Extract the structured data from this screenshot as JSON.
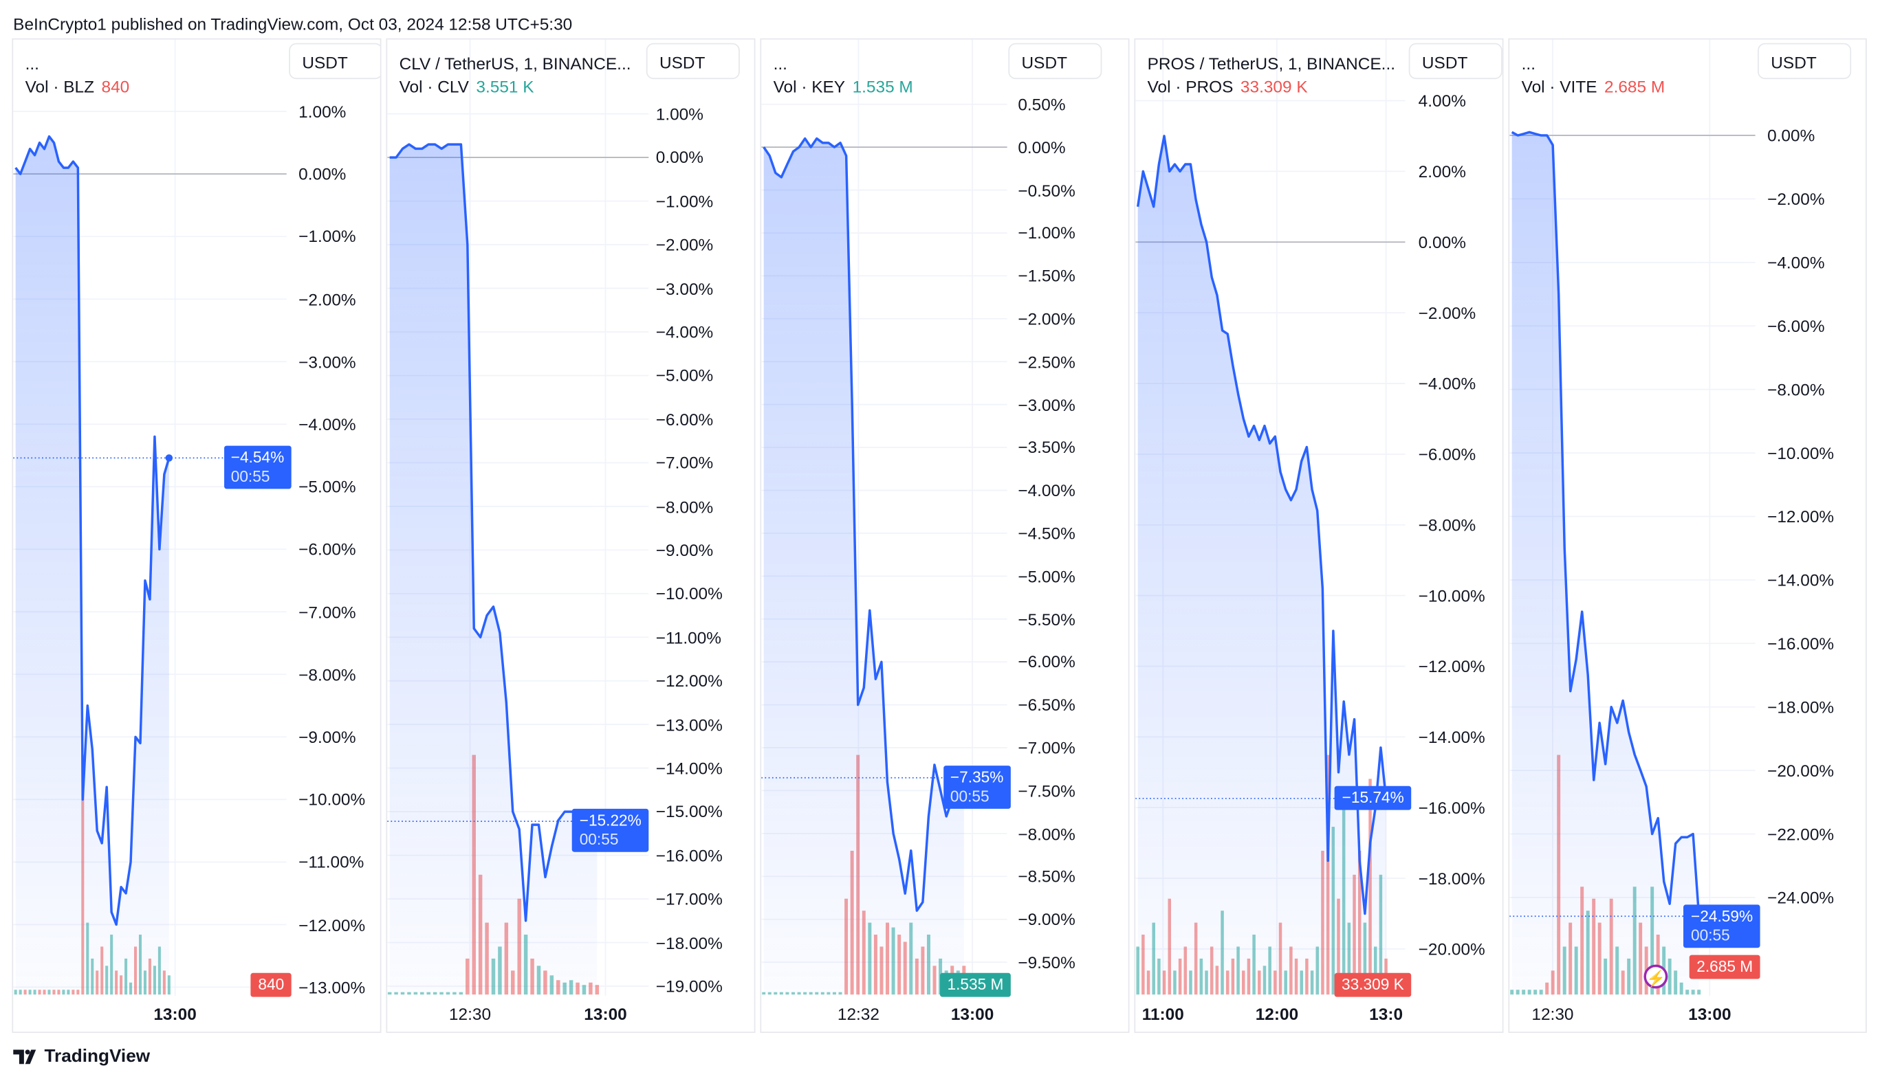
{
  "attribution": "BeInCrypto1 published on TradingView.com, Oct 03, 2024 12:58 UTC+5:30",
  "footer_logo": "TradingView",
  "colors": {
    "line": "#2962ff",
    "up": "#26a69a",
    "down": "#ef5350",
    "accent": "#2962ff"
  },
  "panels": [
    {
      "title": "...",
      "vol_label": "Vol · BLZ",
      "vol_value": "840",
      "vol_color": "#ef5350",
      "currency": "USDT",
      "ticks": [
        "1.00%",
        "0.00%",
        "−1.00%",
        "−2.00%",
        "−3.00%",
        "−4.00%",
        "−5.00%",
        "−6.00%",
        "−7.00%",
        "−8.00%",
        "−9.00%",
        "−10.00%",
        "−11.00%",
        "−12.00%",
        "−13.00%"
      ],
      "current": {
        "value": "−4.54%",
        "countdown": "00:55"
      },
      "vol_badge": "840",
      "time_labels": [
        {
          "text": "13:00",
          "bold": true
        }
      ],
      "line": [
        0.1,
        0.0,
        0.2,
        0.4,
        0.3,
        0.5,
        0.4,
        0.6,
        0.5,
        0.2,
        0.1,
        0.1,
        0.2,
        0.1,
        -10.0,
        -8.5,
        -9.2,
        -10.5,
        -10.7,
        -9.8,
        -11.8,
        -12.0,
        -11.4,
        -11.5,
        -11.0,
        -9.0,
        -9.1,
        -6.5,
        -6.8,
        -4.2,
        -6.0,
        -4.8,
        -4.54
      ],
      "volume": [
        0.02,
        0.02,
        0.02,
        0.02,
        0.02,
        0.02,
        0.02,
        0.02,
        0.02,
        0.02,
        0.02,
        0.02,
        0.02,
        0.02,
        1.0,
        0.3,
        0.15,
        0.1,
        0.2,
        0.12,
        0.25,
        0.1,
        0.08,
        0.15,
        0.05,
        0.2,
        0.25,
        0.1,
        0.15,
        0.12,
        0.2,
        0.1,
        0.08
      ],
      "volume_dir": "uuduuddudduuddduudduudduuduuduudu"
    },
    {
      "title": "CLV / TetherUS, 1, BINANCE...",
      "vol_label": "Vol · CLV",
      "vol_value": "3.551 K",
      "vol_color": "#26a69a",
      "currency": "USDT",
      "ticks": [
        "1.00%",
        "0.00%",
        "−1.00%",
        "−2.00%",
        "−3.00%",
        "−4.00%",
        "−5.00%",
        "−6.00%",
        "−7.00%",
        "−8.00%",
        "−9.00%",
        "−10.00%",
        "−11.00%",
        "−12.00%",
        "−13.00%",
        "−14.00%",
        "−15.00%",
        "−16.00%",
        "−17.00%",
        "−18.00%",
        "−19.00%"
      ],
      "current": {
        "value": "−15.22%",
        "countdown": "00:55"
      },
      "vol_badge": "",
      "time_labels": [
        {
          "text": "12:30",
          "bold": false
        },
        {
          "text": "13:00",
          "bold": true
        }
      ],
      "line": [
        0.0,
        0.0,
        0.2,
        0.3,
        0.2,
        0.2,
        0.3,
        0.3,
        0.2,
        0.3,
        0.3,
        0.3,
        -2.0,
        -10.8,
        -11.0,
        -10.5,
        -10.3,
        -10.9,
        -12.5,
        -15.0,
        -15.4,
        -17.5,
        -15.3,
        -15.3,
        -16.5,
        -15.8,
        -15.2,
        -15.0,
        -15.0,
        -15.0,
        -15.2,
        -15.0,
        -15.22
      ],
      "volume": [
        0.01,
        0.01,
        0.01,
        0.01,
        0.01,
        0.01,
        0.01,
        0.01,
        0.01,
        0.01,
        0.01,
        0.01,
        0.15,
        1.0,
        0.5,
        0.3,
        0.15,
        0.2,
        0.3,
        0.1,
        0.4,
        0.25,
        0.15,
        0.12,
        0.1,
        0.08,
        0.06,
        0.05,
        0.06,
        0.05,
        0.04,
        0.05,
        0.04
      ],
      "volume_dir": "uuuuuuuuuuuudddduudddudududuududd"
    },
    {
      "title": "...",
      "vol_label": "Vol · KEY",
      "vol_value": "1.535 M",
      "vol_color": "#26a69a",
      "currency": "USDT",
      "ticks": [
        "0.50%",
        "0.00%",
        "−0.50%",
        "−1.00%",
        "−1.50%",
        "−2.00%",
        "−2.50%",
        "−3.00%",
        "−3.50%",
        "−4.00%",
        "−4.50%",
        "−5.00%",
        "−5.50%",
        "−6.00%",
        "−6.50%",
        "−7.00%",
        "−7.50%",
        "−8.00%",
        "−8.50%",
        "−9.00%",
        "−9.50%"
      ],
      "current": {
        "value": "−7.35%",
        "countdown": "00:55"
      },
      "vol_badge": "1.535 M",
      "time_labels": [
        {
          "text": "12:32",
          "bold": false
        },
        {
          "text": "13:00",
          "bold": true
        }
      ],
      "line": [
        0.0,
        -0.1,
        -0.3,
        -0.35,
        -0.2,
        -0.05,
        0.0,
        0.1,
        0.0,
        0.1,
        0.05,
        0.05,
        0.0,
        0.05,
        -0.1,
        -3.0,
        -6.5,
        -6.3,
        -5.4,
        -6.2,
        -6.0,
        -7.4,
        -8.0,
        -8.3,
        -8.7,
        -8.2,
        -8.9,
        -8.8,
        -7.8,
        -7.2,
        -7.5,
        -7.8,
        -7.6,
        -7.4,
        -7.35
      ],
      "volume": [
        0.01,
        0.01,
        0.01,
        0.01,
        0.01,
        0.01,
        0.01,
        0.01,
        0.01,
        0.01,
        0.01,
        0.01,
        0.01,
        0.01,
        0.4,
        0.6,
        1.0,
        0.35,
        0.3,
        0.25,
        0.2,
        0.3,
        0.28,
        0.25,
        0.22,
        0.3,
        0.15,
        0.2,
        0.25,
        0.12,
        0.15,
        0.1,
        0.12,
        0.1,
        0.12
      ],
      "volume_dir": "uuuuuuuuuuuuuudddduddduddudduduudud"
    },
    {
      "title": "PROS / TetherUS, 1, BINANCE...",
      "vol_label": "Vol · PROS",
      "vol_value": "33.309 K",
      "vol_color": "#ef5350",
      "currency": "USDT",
      "ticks": [
        "4.00%",
        "2.00%",
        "0.00%",
        "−2.00%",
        "−4.00%",
        "−6.00%",
        "−8.00%",
        "−10.00%",
        "−12.00%",
        "−14.00%",
        "−16.00%",
        "−18.00%",
        "−20.00%"
      ],
      "current": {
        "value": "−15.74%",
        "countdown": ""
      },
      "vol_badge": "33.309 K",
      "time_labels": [
        {
          "text": "11:00",
          "bold": true
        },
        {
          "text": "12:00",
          "bold": true
        },
        {
          "text": "13:0",
          "bold": true
        }
      ],
      "line": [
        1.0,
        2.0,
        1.5,
        1.0,
        2.2,
        3.0,
        2.0,
        2.2,
        2.0,
        2.2,
        2.2,
        1.2,
        0.5,
        0.0,
        -1.0,
        -1.5,
        -2.5,
        -2.6,
        -3.5,
        -4.3,
        -5.0,
        -5.5,
        -5.2,
        -5.6,
        -5.2,
        -5.7,
        -5.5,
        -6.5,
        -7.0,
        -7.3,
        -7.0,
        -6.2,
        -5.8,
        -7.0,
        -7.6,
        -9.8,
        -17.5,
        -11.0,
        -15.0,
        -13.0,
        -14.5,
        -13.5,
        -17.5,
        -19.0,
        -17.0,
        -16.0,
        -14.3,
        -15.74
      ],
      "volume": [
        0.2,
        0.25,
        0.1,
        0.3,
        0.15,
        0.1,
        0.4,
        0.1,
        0.15,
        0.2,
        0.1,
        0.3,
        0.15,
        0.1,
        0.2,
        0.12,
        0.35,
        0.1,
        0.15,
        0.2,
        0.1,
        0.15,
        0.25,
        0.1,
        0.12,
        0.2,
        0.1,
        0.3,
        0.1,
        0.2,
        0.15,
        0.1,
        0.15,
        0.1,
        0.2,
        0.6,
        1.0,
        0.7,
        0.4,
        0.8,
        0.3,
        0.5,
        0.6,
        0.3,
        0.9,
        0.2,
        0.5,
        0.15
      ],
      "volume_dir": "udduuddudduduudduddudduduuddudduduudduduudduduud"
    },
    {
      "title": "...",
      "vol_label": "Vol · VITE",
      "vol_value": "2.685 M",
      "vol_color": "#ef5350",
      "currency": "USDT",
      "ticks": [
        "0.00%",
        "−2.00%",
        "−4.00%",
        "−6.00%",
        "−8.00%",
        "−10.00%",
        "−12.00%",
        "−14.00%",
        "−16.00%",
        "−18.00%",
        "−20.00%",
        "−22.00%",
        "−24.00%"
      ],
      "current": {
        "value": "−24.59%",
        "countdown": "00:55"
      },
      "vol_badge": "2.685 M",
      "time_labels": [
        {
          "text": "12:30",
          "bold": false
        },
        {
          "text": "13:00",
          "bold": true
        }
      ],
      "line": [
        0.1,
        0.0,
        0.05,
        0.1,
        0.05,
        0.0,
        0.0,
        -0.3,
        -5.0,
        -13.0,
        -17.5,
        -16.5,
        -15.0,
        -17.0,
        -20.3,
        -18.5,
        -19.8,
        -18.0,
        -18.5,
        -17.8,
        -18.8,
        -19.5,
        -20.0,
        -20.5,
        -22.0,
        -21.5,
        -23.5,
        -24.2,
        -22.3,
        -22.1,
        -22.1,
        -22.0,
        -24.59
      ],
      "volume": [
        0.02,
        0.02,
        0.02,
        0.02,
        0.02,
        0.02,
        0.05,
        0.1,
        1.0,
        0.2,
        0.3,
        0.2,
        0.45,
        0.35,
        0.4,
        0.3,
        0.15,
        0.4,
        0.2,
        0.1,
        0.15,
        0.45,
        0.3,
        0.2,
        0.45,
        0.25,
        0.2,
        0.15,
        0.1,
        0.05,
        0.02,
        0.02,
        0.02
      ],
      "volume_dir": "uuuuuudddudududdududuudduduuuuuuu"
    }
  ]
}
